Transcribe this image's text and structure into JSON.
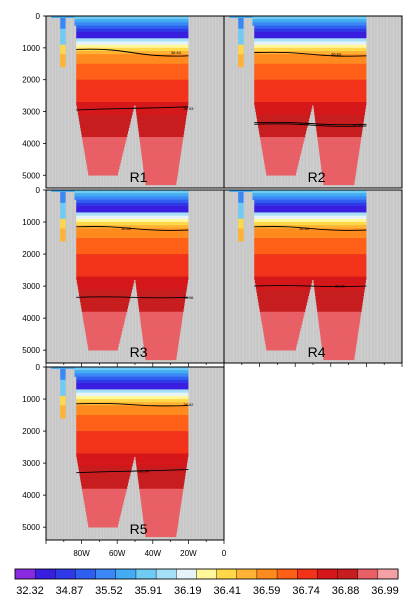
{
  "chart_data": {
    "type": "heatmap",
    "title": "",
    "xlabel": "",
    "ylabel": "",
    "x_ticks": [
      "80W",
      "60W",
      "40W",
      "20W",
      "0"
    ],
    "xlim": [
      -100,
      0
    ],
    "y_ticks": [
      "0",
      "1000",
      "2000",
      "3000",
      "4000",
      "5000"
    ],
    "ylim": [
      5400,
      0
    ],
    "y_reversed": true,
    "land_color": "#c8c8c8",
    "panels": [
      {
        "label": "R1",
        "contours": [
          {
            "label": "36.64",
            "depth_west": 1050,
            "depth_east": 1250,
            "label_lon": -27
          },
          {
            "label": "36.93",
            "depth_west": 2950,
            "depth_east": 2850,
            "label_lon": -20
          }
        ]
      },
      {
        "label": "R2",
        "contours": [
          {
            "label": "36.63",
            "depth_west": 1150,
            "depth_east": 1250,
            "label_lon": -37
          },
          {
            "label": "36.94",
            "depth_west": 3350,
            "depth_east": 3400,
            "label_lon": -55
          },
          {
            "label": "36.96",
            "depth_west": 3400,
            "depth_east": 3450,
            "label_lon": -25
          }
        ]
      },
      {
        "label": "R3",
        "contours": [
          {
            "label": "36.63",
            "depth_west": 1150,
            "depth_east": 1250,
            "label_lon": -55
          },
          {
            "label": "36.96",
            "depth_west": 3350,
            "depth_east": 3350,
            "label_lon": -20
          }
        ]
      },
      {
        "label": "R4",
        "contours": [
          {
            "label": "36.64",
            "depth_west": 1150,
            "depth_east": 1250,
            "label_lon": -55
          },
          {
            "label": "36.96",
            "depth_west": 3000,
            "depth_east": 3000,
            "label_lon": -35
          }
        ]
      },
      {
        "label": "R5",
        "contours": [
          {
            "label": "36.62",
            "depth_west": 1150,
            "depth_east": 1200,
            "label_lon": -20
          },
          {
            "label": "36.94",
            "depth_west": 3300,
            "depth_east": 3200,
            "label_lon": -45
          }
        ]
      }
    ],
    "colorbar": {
      "tick_labels": [
        "32.32",
        "34.87",
        "35.52",
        "35.91",
        "36.19",
        "36.41",
        "36.59",
        "36.74",
        "36.88",
        "36.99"
      ],
      "colors": [
        "#8a2be2",
        "#3a1ee0",
        "#2f38e6",
        "#2f5ff0",
        "#3a87f5",
        "#42abf2",
        "#6fcaf4",
        "#a6e0f8",
        "#e6f3fb",
        "#fff79a",
        "#ffd84a",
        "#ffb233",
        "#ff8a1e",
        "#ff5f17",
        "#f2331a",
        "#d51719",
        "#c81d1f",
        "#e85f65",
        "#f5a0a6"
      ]
    }
  }
}
